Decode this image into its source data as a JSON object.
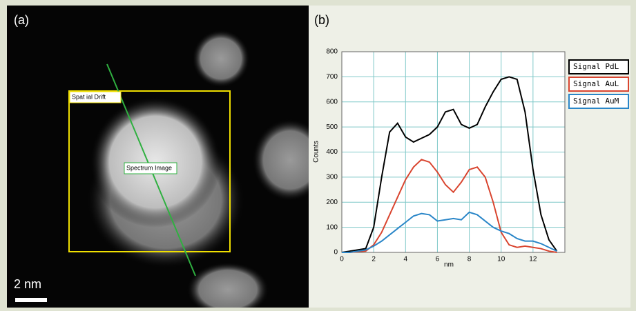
{
  "panel_a": {
    "label": "(a)",
    "box_label": "Spat ial Drift",
    "line_label": "Spectrum Image",
    "scale_bar": "2 nm"
  },
  "chart_data": {
    "type": "line",
    "label": "(b)",
    "x_label": "nm",
    "y_label": "Counts",
    "x": [
      0,
      0.5,
      1,
      1.5,
      2,
      2.5,
      3,
      3.5,
      4,
      4.5,
      5,
      5.5,
      6,
      6.5,
      7,
      7.5,
      8,
      8.5,
      9,
      9.5,
      10,
      10.5,
      11,
      11.5,
      12,
      12.5,
      13,
      13.5
    ],
    "series": [
      {
        "name": "Signal PdL",
        "color": "#000000",
        "values": [
          0,
          5,
          10,
          15,
          100,
          300,
          480,
          515,
          460,
          440,
          455,
          470,
          500,
          560,
          570,
          510,
          495,
          510,
          580,
          640,
          690,
          700,
          690,
          560,
          330,
          150,
          50,
          5
        ]
      },
      {
        "name": "Signal AuL",
        "color": "#d9452f",
        "values": [
          0,
          0,
          3,
          5,
          30,
          80,
          150,
          220,
          290,
          340,
          370,
          360,
          320,
          270,
          240,
          280,
          330,
          340,
          300,
          200,
          80,
          30,
          20,
          25,
          20,
          15,
          5,
          0
        ]
      },
      {
        "name": "Signal AuM",
        "color": "#2a86c8",
        "values": [
          0,
          0,
          5,
          10,
          25,
          45,
          70,
          95,
          120,
          145,
          155,
          150,
          125,
          130,
          135,
          130,
          160,
          150,
          125,
          100,
          85,
          75,
          55,
          45,
          45,
          35,
          20,
          5
        ]
      }
    ],
    "xlim": [
      0,
      14
    ],
    "xticks": [
      0,
      2,
      4,
      6,
      8,
      10,
      12
    ],
    "ylim": [
      0,
      800
    ],
    "yticks": [
      0,
      100,
      200,
      300,
      400,
      500,
      600,
      700,
      800
    ],
    "grid": true,
    "grid_color": "#7fc8c8",
    "legend": "right"
  }
}
